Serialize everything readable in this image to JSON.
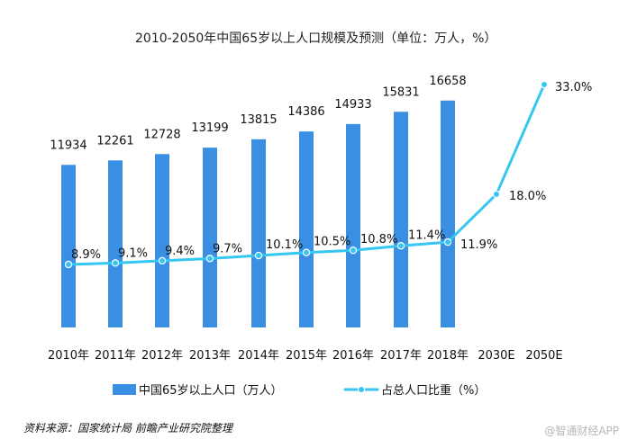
{
  "chart_data": {
    "type": "bar",
    "title": "2010-2050年中国65岁以上人口规模及预测（单位：万人，%）",
    "categories": [
      "2010年",
      "2011年",
      "2012年",
      "2013年",
      "2014年",
      "2015年",
      "2016年",
      "2017年",
      "2018年",
      "2030E",
      "2050E"
    ],
    "series": [
      {
        "name": "中国65岁以上人口（万人）",
        "type": "bar",
        "values": [
          11934,
          12261,
          12728,
          13199,
          13815,
          14386,
          14933,
          15831,
          16658,
          null,
          null
        ]
      },
      {
        "name": "占总人口比重（%）",
        "type": "line",
        "values": [
          8.9,
          9.1,
          9.4,
          9.7,
          10.1,
          10.5,
          10.8,
          11.4,
          11.9,
          18.0,
          33.0
        ],
        "labels": [
          "8.9%",
          "9.1%",
          "9.4%",
          "9.7%",
          "10.1%",
          "10.5%",
          "10.8%",
          "11.4%",
          "11.9%",
          "18.0%",
          "33.0%"
        ]
      }
    ],
    "legend": [
      "中国65岁以上人口（万人）",
      "占总人口比重（%）"
    ],
    "legend_position": "bottom",
    "xlabel": "",
    "ylabel": "",
    "ylim": [
      0,
      17500
    ],
    "y2lim": [
      0,
      35
    ],
    "grid": false
  },
  "footer": {
    "source": "资料来源：国家统计局 前瞻产业研究院整理",
    "watermark": "@智通财经APP"
  },
  "colors": {
    "bar": "#3b8fe3",
    "line": "#35c6f2"
  }
}
